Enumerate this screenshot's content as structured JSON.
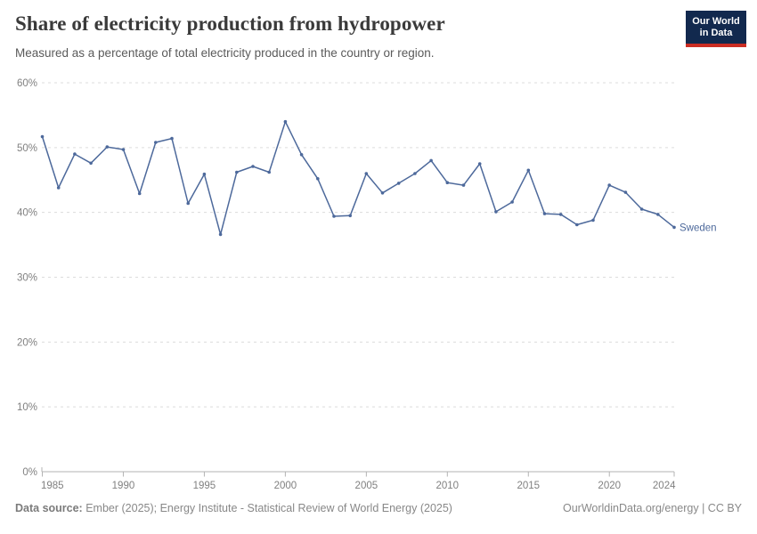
{
  "header": {
    "title": "Share of electricity production from hydropower",
    "subtitle": "Measured as a percentage of total electricity produced in the country or region.",
    "logo": {
      "line1": "Our World",
      "line2": "in Data"
    }
  },
  "chart_data": {
    "type": "line",
    "title": "Share of electricity production from hydropower",
    "xlabel": "",
    "ylabel": "",
    "xlim": [
      1985,
      2024
    ],
    "ylim": [
      0,
      60
    ],
    "grid": "horizontal-dashed",
    "legend_position": "end-of-line-label",
    "x_ticks": [
      1985,
      1990,
      1995,
      2000,
      2005,
      2010,
      2015,
      2020,
      2024
    ],
    "y_ticks": [
      0,
      10,
      20,
      30,
      40,
      50,
      60
    ],
    "y_tick_suffix": "%",
    "series": [
      {
        "name": "Sweden",
        "color": "#4D699B",
        "x": [
          1985,
          1986,
          1987,
          1988,
          1989,
          1990,
          1991,
          1992,
          1993,
          1994,
          1995,
          1996,
          1997,
          1998,
          1999,
          2000,
          2001,
          2002,
          2003,
          2004,
          2005,
          2006,
          2007,
          2008,
          2009,
          2010,
          2011,
          2012,
          2013,
          2014,
          2015,
          2016,
          2017,
          2018,
          2019,
          2020,
          2021,
          2022,
          2023,
          2024
        ],
        "values": [
          51.7,
          43.8,
          49.0,
          47.6,
          50.1,
          49.7,
          42.9,
          50.8,
          51.4,
          41.4,
          45.9,
          36.6,
          46.2,
          47.1,
          46.2,
          54.0,
          48.9,
          45.2,
          39.4,
          39.5,
          46.0,
          43.0,
          44.5,
          46.0,
          48.0,
          44.6,
          44.2,
          47.5,
          40.1,
          41.6,
          46.5,
          39.8,
          39.7,
          38.1,
          38.8,
          44.2,
          43.1,
          40.5,
          39.7,
          37.7
        ]
      }
    ]
  },
  "footer": {
    "source_label": "Data source:",
    "source_text": " Ember (2025); Energy Institute - Statistical Review of World Energy (2025)",
    "rights": "OurWorldinData.org/energy | CC BY"
  },
  "colors": {
    "line": "#4D699B",
    "grid": "#dcdcdc",
    "axis": "#b3b3b3",
    "tick_text": "#808080",
    "logo_bg": "#12294E",
    "logo_red": "#CB2D23"
  }
}
